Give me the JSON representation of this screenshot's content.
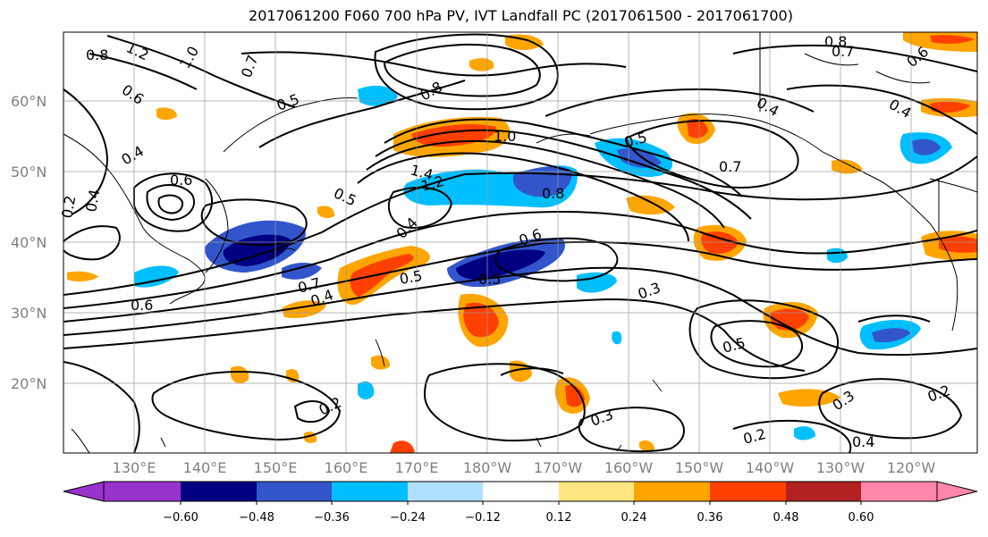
{
  "title": "2017061200 F060 700 hPa PV, IVT Landfall PC (2017061500 - 2017061700)",
  "lat_labels": [
    "60°N",
    "50°N",
    "40°N",
    "30°N",
    "20°N"
  ],
  "lon_labels": [
    "130°E",
    "140°E",
    "150°E",
    "160°E",
    "170°E",
    "180°W",
    "170°W",
    "160°W",
    "150°W",
    "140°W",
    "130°W",
    "120°W"
  ],
  "colorbar": {
    "ticks": [
      "−0.60",
      "−0.48",
      "−0.36",
      "−0.24",
      "−0.12",
      "0.12",
      "0.24",
      "0.36",
      "0.48",
      "0.60"
    ],
    "colors": [
      "#9933cc",
      "#000080",
      "#3355cc",
      "#00bfff",
      "#b0e0ff",
      "#ffffff",
      "#ffe680",
      "#ffa500",
      "#ff4000",
      "#b22222",
      "#ff88aa"
    ]
  },
  "contour_labels": [
    "0.8",
    "1.2",
    "1.0",
    "0.7",
    "0.6",
    "0.5",
    "0.4",
    "0.8",
    "1.0",
    "1.4",
    "1.2",
    "0.8",
    "0.5",
    "0.7",
    "0.8",
    "0.7",
    "0.6",
    "0.4",
    "0.4",
    "0.6",
    "0.5",
    "0.4",
    "0.6",
    "0.5",
    "0.5",
    "0.3",
    "0.5",
    "0.4",
    "0.7",
    "0.6",
    "0.4",
    "0.2",
    "0.2",
    "0.3",
    "0.3",
    "0.2",
    "0.4",
    "0.2"
  ]
}
